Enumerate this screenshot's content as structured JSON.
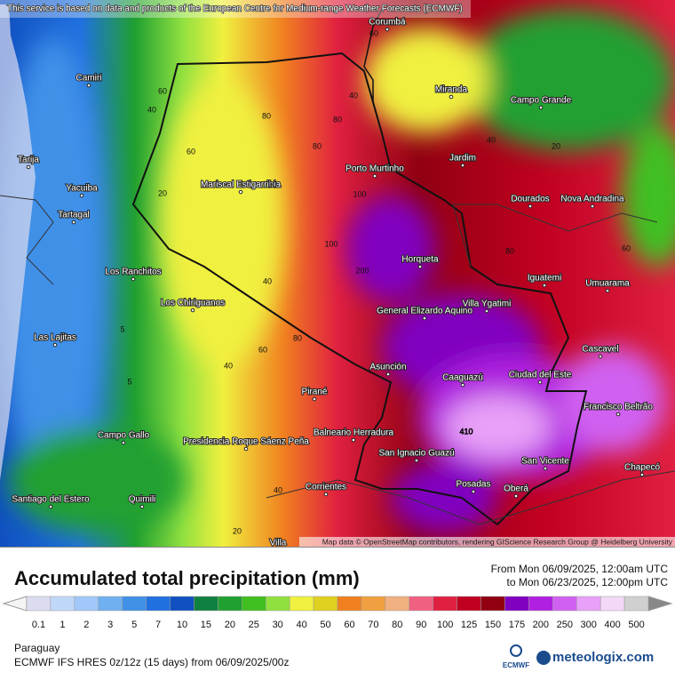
{
  "header": {
    "notice": "This service is based on data and products of the European Centre for Medium-range Weather Forecasts (ECMWF)"
  },
  "map": {
    "attribution": "Map data © OpenStreetMap contributors, rendering GIScience Research Group @ Heidelberg University",
    "cities": [
      "Corumbá",
      "Camiri",
      "Miranda",
      "Campo Grande",
      "Tarija",
      "Jardim",
      "Porto Murtinho",
      "Mariscal Estigarribia",
      "Yacuiba",
      "Dourados",
      "Nova Andradina",
      "Tartagal",
      "Los Ranchitos",
      "Horqueta",
      "Iguatemi",
      "Umuarama",
      "Los Chiriguanos",
      "General Elizardo Aquino",
      "Villa Ygatimi",
      "Las Lajitas",
      "Cascavel",
      "Asunción",
      "Ciudad del Este",
      "Caaguazú",
      "Pirané",
      "Francisco Beltrão",
      "Balneario Herradura",
      "Campo Gallo",
      "Presidencia Roque Sáenz Peña",
      "San Ignacio Guazú",
      "San Vicente",
      "Chapecó",
      "Posadas",
      "Oberá",
      "Corrientes",
      "Santiago del Estero",
      "Quimili",
      "Villa"
    ],
    "contour_labels": [
      60,
      60,
      40,
      40,
      80,
      80,
      60,
      80,
      20,
      60,
      100,
      40,
      20,
      80,
      40,
      60,
      100,
      200,
      80,
      40,
      5,
      5,
      60,
      410,
      40,
      20
    ]
  },
  "legend": {
    "title": "Accumulated total precipitation (mm)",
    "period_from": "From Mon 06/09/2025, 12:00am UTC",
    "period_to": "to Mon 06/23/2025, 12:00pm UTC",
    "levels": [
      {
        "value": 0.1,
        "color": "#dcdcf0"
      },
      {
        "value": 1,
        "color": "#c0d8f8"
      },
      {
        "value": 2,
        "color": "#a0c8f8"
      },
      {
        "value": 3,
        "color": "#70b0f0"
      },
      {
        "value": 5,
        "color": "#4090e8"
      },
      {
        "value": 7,
        "color": "#2070e0"
      },
      {
        "value": 10,
        "color": "#1050c0"
      },
      {
        "value": 15,
        "color": "#108040"
      },
      {
        "value": 20,
        "color": "#20a030"
      },
      {
        "value": 25,
        "color": "#40c020"
      },
      {
        "value": 30,
        "color": "#90e040"
      },
      {
        "value": 40,
        "color": "#f0f040"
      },
      {
        "value": 50,
        "color": "#e0d020"
      },
      {
        "value": 60,
        "color": "#f08020"
      },
      {
        "value": 70,
        "color": "#f0a040"
      },
      {
        "value": 80,
        "color": "#f0b080"
      },
      {
        "value": 90,
        "color": "#f06080"
      },
      {
        "value": 100,
        "color": "#e02040"
      },
      {
        "value": 125,
        "color": "#c00020"
      },
      {
        "value": 150,
        "color": "#900010"
      },
      {
        "value": 175,
        "color": "#8000c0"
      },
      {
        "value": 200,
        "color": "#b020e0"
      },
      {
        "value": 250,
        "color": "#d060f0"
      },
      {
        "value": 300,
        "color": "#e8a0f8"
      },
      {
        "value": 400,
        "color": "#f4d8f8"
      },
      {
        "value": 500,
        "color": "#d0d0d0"
      }
    ]
  },
  "footer": {
    "region": "Paraguay",
    "model": "ECMWF IFS HRES 0z/12z (15 days) from 06/09/2025/00z",
    "ecmwf_logo": "ECMWF",
    "brand": "meteologix.com"
  }
}
